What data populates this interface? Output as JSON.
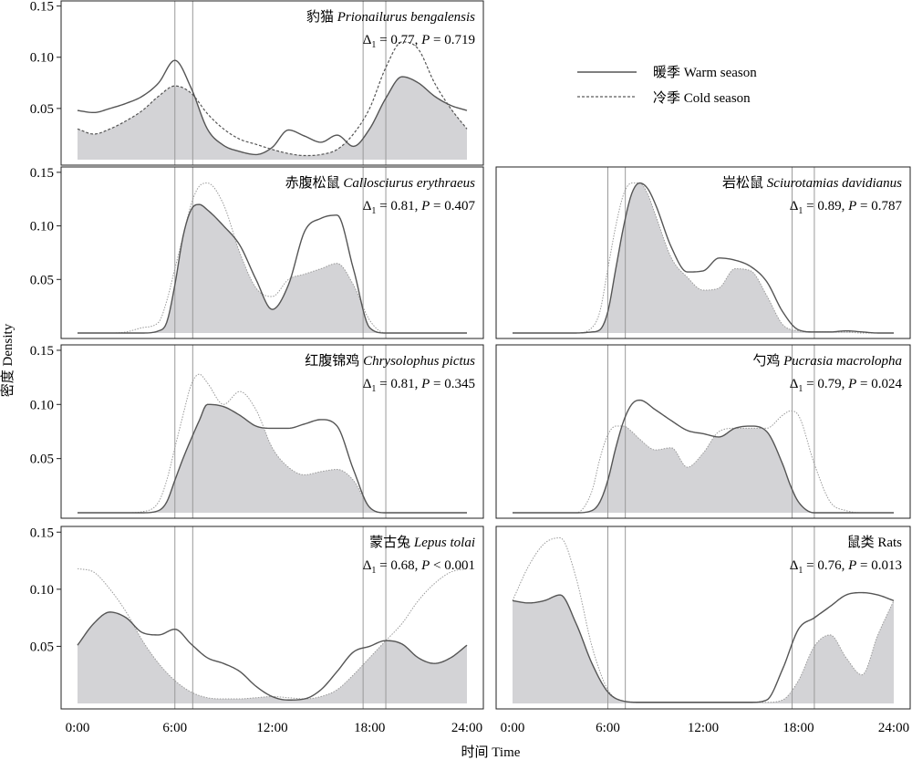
{
  "figure": {
    "ylabel": "密度 Density",
    "xlabel": "时间 Time",
    "legend": {
      "placement": "top-right",
      "warm_label": "暖季 Warm season",
      "cold_label": "冷季 Cold season"
    },
    "colors": {
      "warm_line": "#555555",
      "cold_line_dashed": "#555555",
      "cold_line_dotted": "#9a9a9a",
      "overlap_fill": "#d3d3d6",
      "twilight_line": "#9a9a9a",
      "frame": "#222222"
    }
  },
  "chart_data": [
    {
      "type": "line",
      "panel": "p1",
      "title_cn": "豹猫",
      "title_sci": "Prionailurus bengalensis",
      "stat_d": "= 0.77,",
      "stat_p": "= 0.719",
      "cold_style": "dashed",
      "ylim": [
        0,
        0.155
      ],
      "yticks": [
        "0.05",
        "0.10",
        "0.15"
      ],
      "twilight_hours": [
        6.0,
        7.1,
        17.6,
        19.0
      ],
      "x": [
        0,
        1,
        2,
        3,
        4,
        5,
        6,
        7,
        8,
        9,
        10,
        11,
        12,
        13,
        14,
        15,
        16,
        17,
        18,
        19,
        20,
        21,
        22,
        23,
        24
      ],
      "series": [
        {
          "key": "warm",
          "values": [
            0.048,
            0.046,
            0.05,
            0.055,
            0.062,
            0.075,
            0.097,
            0.07,
            0.03,
            0.014,
            0.008,
            0.005,
            0.012,
            0.029,
            0.023,
            0.017,
            0.024,
            0.013,
            0.03,
            0.06,
            0.081,
            0.075,
            0.062,
            0.053,
            0.048
          ]
        },
        {
          "key": "cold",
          "values": [
            0.03,
            0.025,
            0.03,
            0.038,
            0.048,
            0.062,
            0.072,
            0.065,
            0.045,
            0.03,
            0.02,
            0.015,
            0.01,
            0.006,
            0.004,
            0.005,
            0.01,
            0.025,
            0.05,
            0.09,
            0.115,
            0.108,
            0.075,
            0.05,
            0.03
          ]
        }
      ]
    },
    {
      "type": "line",
      "panel": "p2",
      "title_cn": "赤腹松鼠",
      "title_sci": "Callosciurus erythraeus",
      "stat_d": "= 0.81,",
      "stat_p": "= 0.407",
      "cold_style": "dotted",
      "ylim": [
        0,
        0.155
      ],
      "yticks": [
        "0.05",
        "0.10",
        "0.15"
      ],
      "twilight_hours": [
        6.0,
        7.1,
        17.6,
        19.0
      ],
      "x": [
        0,
        1,
        2,
        3,
        4,
        5,
        5.5,
        6,
        6.5,
        7,
        7.5,
        8,
        9,
        10,
        11,
        12,
        13,
        14,
        15,
        16,
        17,
        18,
        19,
        20,
        21,
        22,
        23,
        24
      ],
      "series": [
        {
          "key": "warm",
          "values": [
            0,
            0,
            0,
            0,
            0,
            0.002,
            0.01,
            0.045,
            0.09,
            0.115,
            0.12,
            0.115,
            0.1,
            0.082,
            0.05,
            0.022,
            0.045,
            0.095,
            0.107,
            0.11,
            0.06,
            0.005,
            0,
            0,
            0,
            0,
            0,
            0
          ]
        },
        {
          "key": "cold",
          "values": [
            0,
            0,
            0,
            0.001,
            0.005,
            0.01,
            0.03,
            0.06,
            0.09,
            0.12,
            0.137,
            0.14,
            0.12,
            0.075,
            0.042,
            0.034,
            0.05,
            0.055,
            0.06,
            0.065,
            0.045,
            0.012,
            0,
            0,
            0,
            0,
            0,
            0
          ]
        }
      ]
    },
    {
      "type": "line",
      "panel": "p3",
      "title_cn": "岩松鼠",
      "title_sci": "Sciurotamias davidianus",
      "stat_d": "= 0.89,",
      "stat_p": "= 0.787",
      "cold_style": "dotted",
      "ylim": [
        0,
        0.155
      ],
      "yticks": [],
      "twilight_hours": [
        6.0,
        7.1,
        17.6,
        19.0
      ],
      "x": [
        0,
        1,
        2,
        3,
        4,
        5,
        5.5,
        6,
        6.5,
        7,
        7.5,
        8,
        8.5,
        9,
        10,
        11,
        12,
        13,
        14,
        15,
        16,
        17,
        18,
        19,
        20,
        21,
        22,
        23,
        24
      ],
      "series": [
        {
          "key": "warm",
          "values": [
            0,
            0,
            0,
            0,
            0,
            0.001,
            0.003,
            0.02,
            0.06,
            0.1,
            0.13,
            0.14,
            0.135,
            0.12,
            0.08,
            0.057,
            0.058,
            0.07,
            0.068,
            0.062,
            0.048,
            0.02,
            0.003,
            0.001,
            0.001,
            0.002,
            0.001,
            0,
            0
          ]
        },
        {
          "key": "cold",
          "values": [
            0,
            0,
            0,
            0,
            0,
            0.005,
            0.02,
            0.06,
            0.1,
            0.13,
            0.14,
            0.14,
            0.13,
            0.11,
            0.07,
            0.052,
            0.04,
            0.042,
            0.06,
            0.058,
            0.035,
            0.008,
            0.002,
            0.001,
            0.001,
            0.001,
            0,
            0,
            0
          ]
        }
      ]
    },
    {
      "type": "line",
      "panel": "p4",
      "title_cn": "红腹锦鸡",
      "title_sci": "Chrysolophus pictus",
      "stat_d": "= 0.81,",
      "stat_p": "= 0.345",
      "cold_style": "dotted",
      "ylim": [
        0,
        0.155
      ],
      "yticks": [
        "0.05",
        "0.10",
        "0.15"
      ],
      "twilight_hours": [
        6.0,
        7.1,
        17.6,
        19.0
      ],
      "x": [
        0,
        1,
        2,
        3,
        4,
        5,
        5.5,
        6,
        6.5,
        7,
        7.5,
        8,
        9,
        10,
        11,
        12,
        13,
        14,
        15,
        16,
        17,
        18,
        19,
        20,
        21,
        22,
        23,
        24
      ],
      "series": [
        {
          "key": "warm",
          "values": [
            0,
            0,
            0,
            0,
            0,
            0.002,
            0.01,
            0.03,
            0.05,
            0.068,
            0.085,
            0.1,
            0.098,
            0.09,
            0.08,
            0.078,
            0.078,
            0.082,
            0.086,
            0.08,
            0.04,
            0.005,
            0,
            0,
            0,
            0,
            0,
            0
          ]
        },
        {
          "key": "cold",
          "values": [
            0,
            0,
            0,
            0,
            0.001,
            0.01,
            0.03,
            0.06,
            0.09,
            0.118,
            0.128,
            0.12,
            0.1,
            0.112,
            0.095,
            0.06,
            0.042,
            0.035,
            0.038,
            0.04,
            0.03,
            0.005,
            0,
            0,
            0,
            0,
            0,
            0
          ]
        }
      ]
    },
    {
      "type": "line",
      "panel": "p5",
      "title_cn": "勺鸡",
      "title_sci": "Pucrasia macrolopha",
      "stat_d": "= 0.79,",
      "stat_p": "= 0.024",
      "cold_style": "dotted",
      "ylim": [
        0,
        0.155
      ],
      "yticks": [],
      "twilight_hours": [
        6.0,
        7.1,
        17.6,
        19.0
      ],
      "x": [
        0,
        1,
        2,
        3,
        4,
        5,
        5.5,
        6,
        6.5,
        7,
        7.5,
        8,
        9,
        10,
        11,
        12,
        13,
        14,
        15,
        16,
        17,
        17.5,
        18,
        19,
        20,
        21,
        22,
        23,
        24
      ],
      "series": [
        {
          "key": "warm",
          "values": [
            0,
            0,
            0,
            0,
            0,
            0.002,
            0.01,
            0.03,
            0.06,
            0.085,
            0.1,
            0.104,
            0.095,
            0.085,
            0.076,
            0.073,
            0.07,
            0.078,
            0.08,
            0.075,
            0.045,
            0.025,
            0.01,
            0,
            0,
            0,
            0,
            0,
            0
          ]
        },
        {
          "key": "cold",
          "values": [
            0,
            0,
            0,
            0,
            0,
            0.02,
            0.05,
            0.072,
            0.08,
            0.08,
            0.075,
            0.068,
            0.058,
            0.06,
            0.042,
            0.055,
            0.075,
            0.078,
            0.078,
            0.078,
            0.09,
            0.094,
            0.09,
            0.045,
            0.01,
            0.002,
            0,
            0,
            0
          ]
        }
      ]
    },
    {
      "type": "line",
      "panel": "p6",
      "title_cn": "蒙古兔",
      "title_sci": "Lepus tolai",
      "stat_d": "= 0.68,",
      "stat_p": "< 0.001",
      "cold_style": "dotted",
      "ylim": [
        0,
        0.155
      ],
      "yticks": [
        "0.05",
        "0.10",
        "0.15"
      ],
      "twilight_hours": [
        6.0,
        7.1,
        17.6,
        19.0
      ],
      "x": [
        0,
        1,
        2,
        3,
        4,
        5,
        6,
        7,
        8,
        9,
        10,
        11,
        12,
        13,
        14,
        15,
        16,
        17,
        18,
        19,
        20,
        21,
        22,
        23,
        24
      ],
      "series": [
        {
          "key": "warm",
          "values": [
            0.051,
            0.07,
            0.08,
            0.075,
            0.062,
            0.06,
            0.065,
            0.052,
            0.04,
            0.035,
            0.028,
            0.015,
            0.006,
            0.003,
            0.004,
            0.012,
            0.028,
            0.045,
            0.05,
            0.055,
            0.052,
            0.04,
            0.035,
            0.04,
            0.051
          ]
        },
        {
          "key": "cold",
          "values": [
            0.118,
            0.115,
            0.1,
            0.08,
            0.055,
            0.035,
            0.02,
            0.01,
            0.005,
            0.004,
            0.004,
            0.005,
            0.006,
            0.005,
            0.004,
            0.006,
            0.012,
            0.025,
            0.04,
            0.055,
            0.07,
            0.09,
            0.105,
            0.115,
            0.118
          ]
        }
      ]
    },
    {
      "type": "line",
      "panel": "p7",
      "title_cn": "鼠类",
      "title_sci": "Rats",
      "stat_d": "= 0.76,",
      "stat_p": "= 0.013",
      "cold_style": "dotted",
      "ylim": [
        0,
        0.155
      ],
      "yticks": [],
      "twilight_hours": [
        6.0,
        7.1,
        17.6,
        19.0
      ],
      "x": [
        0,
        1,
        2,
        3,
        4,
        5,
        6,
        7,
        8,
        9,
        10,
        11,
        12,
        13,
        14,
        15,
        16,
        17,
        18,
        19,
        20,
        21,
        22,
        23,
        24
      ],
      "series": [
        {
          "key": "warm",
          "values": [
            0.09,
            0.088,
            0.09,
            0.095,
            0.07,
            0.035,
            0.01,
            0.002,
            0.001,
            0.001,
            0.001,
            0.001,
            0.001,
            0.001,
            0.001,
            0.001,
            0.003,
            0.03,
            0.065,
            0.075,
            0.085,
            0.095,
            0.097,
            0.095,
            0.09
          ]
        },
        {
          "key": "cold",
          "values": [
            0.09,
            0.12,
            0.14,
            0.145,
            0.11,
            0.05,
            0.012,
            0.002,
            0.001,
            0.001,
            0.001,
            0.001,
            0.001,
            0.001,
            0.001,
            0.001,
            0.001,
            0.003,
            0.02,
            0.05,
            0.06,
            0.04,
            0.025,
            0.06,
            0.09
          ]
        }
      ]
    }
  ],
  "x_axis_left": {
    "ticks": [
      "0:00",
      "6:00",
      "12:00",
      "18:00",
      "24:00"
    ],
    "hours": [
      0,
      6,
      12,
      18,
      24
    ]
  },
  "x_axis_right": {
    "ticks": [
      "0:00",
      "6:00",
      "12:00",
      "18:00",
      "24:00"
    ],
    "hours": [
      0,
      6,
      12,
      18,
      24
    ]
  }
}
